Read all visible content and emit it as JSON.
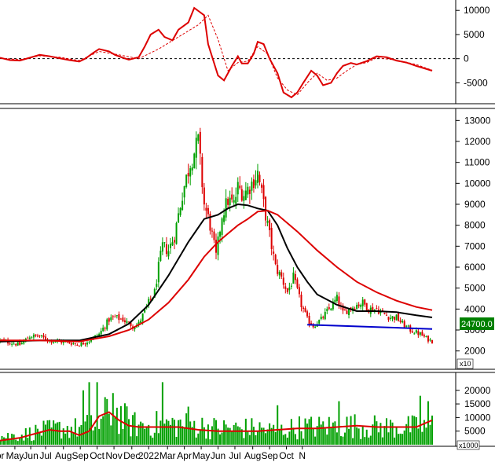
{
  "chart_data": [
    {
      "panel": "oscillator",
      "type": "line",
      "ylim": [
        -9000,
        11500
      ],
      "y_ticks": [
        "10000",
        "5000",
        "0",
        "-5000"
      ],
      "y_tick_values": [
        10000,
        5000,
        0,
        -5000
      ],
      "zero_line": "dashed",
      "series": [
        {
          "role": "main",
          "color": "#dd0000",
          "t": [
            0,
            5,
            10,
            15,
            20,
            25,
            30,
            35,
            40,
            43,
            47,
            50,
            55,
            58,
            62,
            65,
            70,
            73,
            76,
            80,
            83,
            87,
            90,
            95,
            98,
            103,
            105,
            110,
            113,
            117,
            120,
            122,
            125,
            128,
            130,
            133,
            136,
            140,
            143,
            147,
            150,
            153,
            157,
            160,
            163,
            167,
            170,
            173,
            177,
            180,
            185,
            190,
            195,
            200,
            205,
            210,
            218
          ],
          "v": [
            200,
            -300,
            -400,
            200,
            800,
            500,
            100,
            -300,
            -600,
            0,
            1200,
            2000,
            1500,
            800,
            200,
            -200,
            300,
            2500,
            5000,
            6000,
            4500,
            3800,
            6000,
            7500,
            10500,
            9000,
            3000,
            -3500,
            -4500,
            -1500,
            500,
            -1000,
            -1000,
            1000,
            3500,
            3000,
            0,
            -3000,
            -7000,
            -8000,
            -7000,
            -5000,
            -2500,
            -3500,
            -5500,
            -5000,
            -3000,
            -1500,
            -900,
            -1200,
            -500,
            500,
            300,
            -400,
            -800,
            -1500,
            -2500
          ]
        },
        {
          "role": "signal",
          "color": "#dd0000",
          "style": "dashed",
          "t": [
            0,
            10,
            20,
            30,
            40,
            50,
            60,
            70,
            80,
            90,
            100,
            105,
            110,
            115,
            120,
            125,
            130,
            135,
            140,
            145,
            150,
            155,
            160,
            165,
            170,
            175,
            180,
            185,
            190,
            200,
            210,
            218
          ],
          "v": [
            100,
            -200,
            600,
            300,
            -400,
            1500,
            800,
            0,
            2000,
            4500,
            7000,
            9000,
            4000,
            -2500,
            -800,
            -500,
            2500,
            1000,
            -4000,
            -6500,
            -7500,
            -5000,
            -3000,
            -4500,
            -4000,
            -2500,
            -1200,
            -800,
            200,
            -300,
            -1200,
            -2400
          ]
        }
      ]
    },
    {
      "panel": "price",
      "type": "candlestick",
      "ylim": [
        1200,
        13500
      ],
      "y_ticks": [
        "13000",
        "12000",
        "11000",
        "10000",
        "9000",
        "8000",
        "7000",
        "6000",
        "5000",
        "4000",
        "3000",
        "2000"
      ],
      "y_tick_values": [
        13000,
        12000,
        11000,
        10000,
        9000,
        8000,
        7000,
        6000,
        5000,
        4000,
        3000,
        2000
      ],
      "last_price_label": "24700.0",
      "unit_multiplier": "x10",
      "close_anchors": {
        "t": [
          0,
          10,
          15,
          20,
          25,
          30,
          35,
          40,
          45,
          50,
          55,
          58,
          62,
          65,
          68,
          70,
          72,
          75,
          78,
          80,
          82,
          85,
          88,
          92,
          96,
          100,
          103,
          106,
          109,
          112,
          115,
          118,
          120,
          123,
          127,
          130,
          133,
          136,
          139,
          142,
          145,
          148,
          152,
          155,
          158,
          162,
          166,
          170,
          173,
          176,
          180,
          183,
          186,
          190,
          193,
          197,
          200,
          203,
          207,
          212,
          215,
          218
        ],
        "c": [
          2500,
          2300,
          2700,
          2700,
          2500,
          2450,
          2400,
          2300,
          2500,
          2800,
          3500,
          3600,
          3500,
          3300,
          3200,
          3300,
          3700,
          4300,
          4800,
          6000,
          7000,
          6800,
          7500,
          9500,
          11000,
          12000,
          9000,
          8000,
          6500,
          8500,
          9200,
          9000,
          9800,
          9500,
          10000,
          10500,
          9000,
          7500,
          6000,
          5500,
          4800,
          5500,
          4200,
          3500,
          3200,
          3500,
          4000,
          4500,
          3800,
          4000,
          4200,
          4300,
          4000,
          4000,
          3800,
          3600,
          3600,
          3300,
          3000,
          2800,
          2600,
          2470
        ]
      },
      "series": [
        {
          "name": "",
          "role": "ma_short",
          "color": "#000000",
          "t": [
            0,
            20,
            40,
            55,
            65,
            75,
            85,
            95,
            103,
            110,
            115,
            120,
            125,
            130,
            135,
            140,
            145,
            150,
            155,
            160,
            170,
            180,
            190,
            200,
            210,
            218
          ],
          "v": [
            2450,
            2500,
            2500,
            2800,
            3300,
            4200,
            5600,
            7200,
            8300,
            8500,
            8800,
            9000,
            8950,
            8800,
            8700,
            8000,
            6900,
            6000,
            5300,
            4700,
            4200,
            3900,
            3900,
            3850,
            3700,
            3600
          ]
        },
        {
          "name": "",
          "role": "ma_long",
          "color": "#dd0000",
          "t": [
            0,
            20,
            40,
            55,
            65,
            75,
            85,
            95,
            103,
            110,
            115,
            120,
            125,
            130,
            135,
            140,
            145,
            150,
            155,
            160,
            170,
            180,
            190,
            200,
            210,
            218
          ],
          "v": [
            2500,
            2500,
            2450,
            2700,
            3000,
            3500,
            4300,
            5400,
            6500,
            7200,
            7600,
            8000,
            8300,
            8650,
            8700,
            8500,
            8100,
            7700,
            7250,
            6800,
            6000,
            5300,
            4800,
            4400,
            4100,
            3950
          ]
        },
        {
          "name": "",
          "role": "support",
          "color": "#0000cc",
          "t": [
            155,
            218
          ],
          "v": [
            3250,
            3050
          ]
        }
      ]
    },
    {
      "panel": "volume",
      "type": "bar",
      "ylim": [
        0,
        26000
      ],
      "y_ticks": [
        "20000",
        "15000",
        "10000",
        "5000"
      ],
      "y_tick_values": [
        20000,
        15000,
        10000,
        5000
      ],
      "unit_multiplier": "x1000",
      "bar_color": "#00a000",
      "base_profile": {
        "t": [
          0,
          10,
          20,
          30,
          40,
          45,
          50,
          55,
          60,
          65,
          70,
          80,
          90,
          100,
          110,
          120,
          130,
          140,
          150,
          160,
          170,
          180,
          190,
          200,
          210,
          218
        ],
        "v": [
          3000,
          3500,
          5000,
          6000,
          6000,
          7000,
          7000,
          13000,
          11000,
          8000,
          7000,
          7500,
          7500,
          7000,
          6000,
          6000,
          6000,
          5000,
          6500,
          6500,
          7000,
          7000,
          6500,
          6500,
          6500,
          7000
        ]
      },
      "spikes": [
        {
          "t": 42,
          "v": 20000
        },
        {
          "t": 45,
          "v": 23000
        },
        {
          "t": 49,
          "v": 23000
        },
        {
          "t": 57,
          "v": 19000
        },
        {
          "t": 82,
          "v": 23000
        },
        {
          "t": 95,
          "v": 14000
        },
        {
          "t": 140,
          "v": 14500
        },
        {
          "t": 171,
          "v": 16000
        },
        {
          "t": 212,
          "v": 18000
        },
        {
          "t": 216,
          "v": 16000
        }
      ],
      "series": [
        {
          "name": "",
          "role": "volume_ma",
          "color": "#dd0000",
          "t": [
            0,
            10,
            20,
            25,
            30,
            35,
            40,
            45,
            50,
            55,
            60,
            65,
            70,
            80,
            90,
            100,
            110,
            120,
            130,
            140,
            150,
            160,
            170,
            180,
            190,
            200,
            210,
            218
          ],
          "v": [
            1500,
            2500,
            4500,
            5500,
            5000,
            5000,
            3500,
            5000,
            10500,
            12000,
            9000,
            7000,
            6500,
            6500,
            6500,
            5500,
            5000,
            5000,
            5000,
            5500,
            6000,
            6000,
            6500,
            7000,
            6500,
            6500,
            6500,
            9000
          ]
        }
      ]
    }
  ],
  "x_axis": {
    "labels": [
      "Apr",
      "May",
      "Jun",
      "Jul",
      "Aug",
      "Sep",
      "Oct",
      "Nov",
      "Dec",
      "2022",
      "Mar",
      "Apr",
      "May",
      "Jun",
      "Jul",
      "Aug",
      "Sep",
      "Oct",
      "N"
    ],
    "positions_t": [
      -1.5,
      7.5,
      15.5,
      23,
      32,
      40.5,
      49,
      57.5,
      66.5,
      75,
      84.5,
      93,
      101.5,
      110,
      118.5,
      127.5,
      136,
      144.5,
      152.5
    ]
  }
}
